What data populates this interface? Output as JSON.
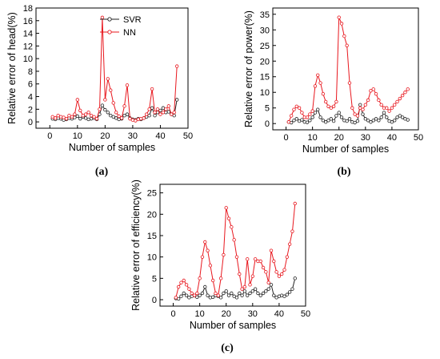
{
  "colors": {
    "svr": "#222222",
    "nn": "#e8171e"
  },
  "chart_data": [
    {
      "type": "line",
      "panel_label": "(a)",
      "xlabel": "Number of samples",
      "ylabel": "Relative error of head(%)",
      "xlim": [
        -5,
        50
      ],
      "ylim": [
        -1,
        18
      ],
      "xticks": [
        0,
        10,
        20,
        30,
        40,
        50
      ],
      "yticks": [
        0,
        2,
        4,
        6,
        8,
        10,
        12,
        14,
        16,
        18
      ],
      "grid": false,
      "legend": "top-center",
      "x": [
        1,
        2,
        3,
        4,
        5,
        6,
        7,
        8,
        9,
        10,
        11,
        12,
        13,
        14,
        15,
        16,
        17,
        18,
        19,
        20,
        21,
        22,
        23,
        24,
        25,
        26,
        27,
        28,
        29,
        30,
        31,
        32,
        33,
        34,
        35,
        36,
        37,
        38,
        39,
        40,
        41,
        42,
        43,
        44,
        45,
        46
      ],
      "series": [
        {
          "name": "SVR",
          "values": [
            0.5,
            0.4,
            0.6,
            0.5,
            0.3,
            0.4,
            0.6,
            0.5,
            0.7,
            0.9,
            0.5,
            0.8,
            0.6,
            0.4,
            0.5,
            0.6,
            0.4,
            1.2,
            2.6,
            1.9,
            1.5,
            1.0,
            0.8,
            0.6,
            0.4,
            0.5,
            1.0,
            1.2,
            0.6,
            0.4,
            0.3,
            0.5,
            0.4,
            0.6,
            0.8,
            1.0,
            2.2,
            1.0,
            1.5,
            1.8,
            2.2,
            1.5,
            1.6,
            1.2,
            1.0,
            3.5
          ]
        },
        {
          "name": "NN",
          "values": [
            0.8,
            0.6,
            1.0,
            0.8,
            0.7,
            0.5,
            1.0,
            0.8,
            1.2,
            3.5,
            1.8,
            1.0,
            1.2,
            1.5,
            1.0,
            0.8,
            0.5,
            2.0,
            16.5,
            3.5,
            6.8,
            5.0,
            3.0,
            1.5,
            0.9,
            0.6,
            2.5,
            5.8,
            0.5,
            0.3,
            0.2,
            0.4,
            0.5,
            0.6,
            1.2,
            2.0,
            5.2,
            1.5,
            2.0,
            1.2,
            1.5,
            2.0,
            2.5,
            1.2,
            1.5,
            8.8
          ]
        }
      ]
    },
    {
      "type": "line",
      "panel_label": "(b)",
      "xlabel": "Number of samples",
      "ylabel": "Relative error of power(%)",
      "xlim": [
        -5,
        50
      ],
      "ylim": [
        -2,
        37
      ],
      "xticks": [
        0,
        10,
        20,
        30,
        40,
        50
      ],
      "yticks": [
        0,
        5,
        10,
        15,
        20,
        25,
        30,
        35
      ],
      "grid": false,
      "x": [
        1,
        2,
        3,
        4,
        5,
        6,
        7,
        8,
        9,
        10,
        11,
        12,
        13,
        14,
        15,
        16,
        17,
        18,
        19,
        20,
        21,
        22,
        23,
        24,
        25,
        26,
        27,
        28,
        29,
        30,
        31,
        32,
        33,
        34,
        35,
        36,
        37,
        38,
        39,
        40,
        41,
        42,
        43,
        44,
        45,
        46
      ],
      "series": [
        {
          "name": "SVR",
          "values": [
            0.5,
            0.3,
            1.0,
            1.5,
            0.8,
            1.2,
            0.5,
            0.4,
            1.0,
            2.0,
            3.5,
            4.5,
            2.0,
            1.0,
            0.5,
            1.0,
            1.5,
            0.8,
            2.5,
            3.5,
            2.0,
            1.0,
            0.8,
            1.5,
            0.5,
            0.3,
            0.8,
            6.0,
            3.0,
            1.5,
            1.0,
            0.5,
            1.0,
            1.5,
            1.0,
            2.0,
            3.5,
            2.0,
            0.8,
            0.5,
            1.0,
            2.0,
            2.5,
            2.0,
            1.5,
            1.2
          ]
        },
        {
          "name": "NN",
          "values": [
            0.5,
            2.5,
            4.5,
            5.5,
            5.0,
            3.5,
            2.0,
            2.0,
            3.0,
            4.0,
            12.0,
            15.5,
            13.0,
            9.5,
            7.0,
            5.5,
            5.0,
            5.5,
            7.0,
            34.0,
            32.0,
            28.0,
            25.0,
            13.0,
            5.0,
            3.0,
            2.5,
            5.0,
            4.5,
            6.0,
            7.5,
            10.5,
            11.0,
            9.5,
            7.5,
            6.0,
            5.0,
            5.0,
            4.0,
            5.0,
            6.0,
            7.0,
            8.0,
            9.0,
            10.0,
            11.0
          ]
        }
      ]
    },
    {
      "type": "line",
      "panel_label": "(c)",
      "xlabel": "Number of samples",
      "ylabel": "Relative error of efficiency(%)",
      "xlim": [
        -5,
        50
      ],
      "ylim": [
        -1.5,
        27
      ],
      "xticks": [
        0,
        10,
        20,
        30,
        40,
        50
      ],
      "yticks": [
        0,
        5,
        10,
        15,
        20,
        25
      ],
      "grid": false,
      "x": [
        1,
        2,
        3,
        4,
        5,
        6,
        7,
        8,
        9,
        10,
        11,
        12,
        13,
        14,
        15,
        16,
        17,
        18,
        19,
        20,
        21,
        22,
        23,
        24,
        25,
        26,
        27,
        28,
        29,
        30,
        31,
        32,
        33,
        34,
        35,
        36,
        37,
        38,
        39,
        40,
        41,
        42,
        43,
        44,
        45,
        46
      ],
      "series": [
        {
          "name": "SVR",
          "values": [
            0.3,
            0.2,
            0.8,
            1.5,
            1.0,
            0.5,
            0.8,
            1.0,
            0.6,
            1.0,
            1.5,
            3.0,
            1.0,
            0.5,
            0.6,
            1.0,
            0.8,
            0.5,
            1.5,
            2.0,
            1.0,
            1.5,
            0.8,
            0.5,
            1.5,
            1.0,
            2.0,
            1.0,
            1.5,
            2.0,
            2.5,
            1.5,
            1.0,
            1.5,
            2.0,
            2.5,
            3.5,
            1.0,
            0.5,
            0.8,
            1.0,
            0.8,
            1.2,
            1.8,
            2.5,
            5.0
          ]
        },
        {
          "name": "NN",
          "values": [
            0.5,
            3.0,
            4.0,
            4.5,
            3.5,
            2.5,
            1.5,
            1.0,
            1.5,
            5.0,
            10.0,
            13.5,
            11.5,
            8.0,
            4.5,
            1.5,
            1.0,
            5.0,
            10.5,
            21.5,
            19.0,
            17.0,
            14.0,
            10.0,
            6.0,
            2.5,
            3.0,
            9.5,
            3.5,
            5.5,
            9.5,
            9.0,
            9.0,
            7.5,
            6.5,
            4.0,
            11.5,
            9.0,
            6.5,
            5.5,
            6.0,
            7.0,
            10.0,
            13.0,
            16.0,
            22.5
          ]
        }
      ]
    }
  ]
}
